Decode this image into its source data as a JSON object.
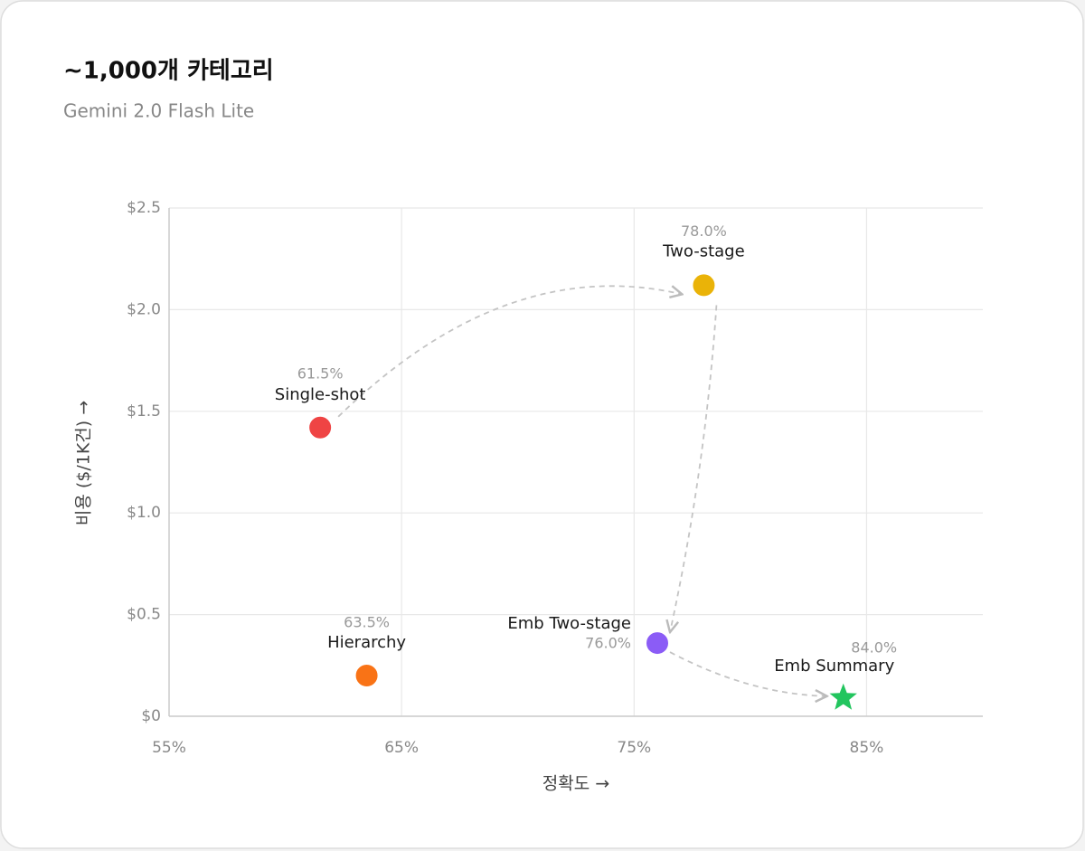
{
  "chart_data": {
    "type": "scatter",
    "title": "~1,000개 카테고리",
    "subtitle": "Gemini 2.0 Flash Lite",
    "x_label": "정확도 →",
    "y_label": "비용 ($/1K건) →",
    "xlim": [
      55,
      90
    ],
    "ylim": [
      0,
      2.5
    ],
    "xticks": [
      {
        "value": 55,
        "label": "55%"
      },
      {
        "value": 65,
        "label": "65%"
      },
      {
        "value": 75,
        "label": "75%"
      },
      {
        "value": 85,
        "label": "85%"
      }
    ],
    "yticks": [
      {
        "value": 0,
        "label": "$0"
      },
      {
        "value": 0.5,
        "label": "$0.5"
      },
      {
        "value": 1.0,
        "label": "$1.0"
      },
      {
        "value": 1.5,
        "label": "$1.5"
      },
      {
        "value": 2.0,
        "label": "$2.0"
      },
      {
        "value": 2.5,
        "label": "$2.5"
      }
    ],
    "grid": true,
    "series": [
      {
        "name": "Single-shot",
        "color": "#ef4444",
        "marker": "circle",
        "x": [
          61.5
        ],
        "values": [
          1.42
        ],
        "value_labels": [
          "61.5%"
        ]
      },
      {
        "name": "Hierarchy",
        "color": "#f97316",
        "marker": "circle",
        "x": [
          63.5
        ],
        "values": [
          0.2
        ],
        "value_labels": [
          "63.5%"
        ]
      },
      {
        "name": "Two-stage",
        "color": "#eab308",
        "marker": "circle",
        "x": [
          78.0
        ],
        "values": [
          2.12
        ],
        "value_labels": [
          "78.0%"
        ]
      },
      {
        "name": "Emb Two-stage",
        "color": "#8b5cf6",
        "marker": "circle",
        "x": [
          76.0
        ],
        "values": [
          0.36
        ],
        "value_labels": [
          "76.0%"
        ]
      },
      {
        "name": "Emb Summary",
        "color": "#22c55e",
        "marker": "star",
        "x": [
          84.0
        ],
        "values": [
          0.09
        ],
        "value_labels": [
          "84.0%"
        ]
      }
    ]
  }
}
